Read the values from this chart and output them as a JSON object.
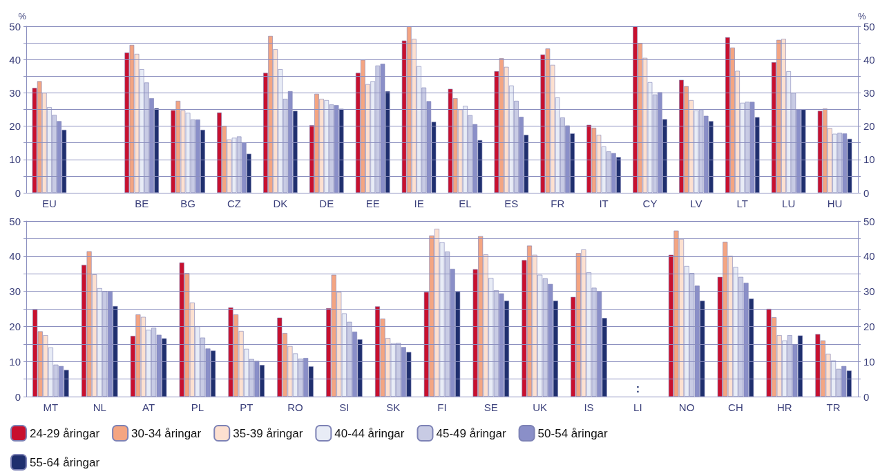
{
  "chart_data": [
    {
      "type": "bar",
      "categories": [
        "EU",
        null,
        "BE",
        "BG",
        "CZ",
        "DK",
        "DE",
        "EE",
        "IE",
        "EL",
        "ES",
        "FR",
        "IT",
        "CY",
        "LV",
        "LT",
        "LU",
        "HU"
      ],
      "series": [
        {
          "color": "#c8102e",
          "values": [
            31.5,
            null,
            42.1,
            24.8,
            24.1,
            36,
            20.3,
            36,
            45.7,
            31.2,
            36.5,
            41.5,
            20.4,
            50,
            33.9,
            46.7,
            39.2,
            24.6
          ]
        },
        {
          "color": "#f4a582",
          "values": [
            33.5,
            null,
            44.4,
            27.6,
            20.1,
            47.1,
            29.7,
            39.9,
            50,
            28.4,
            40.4,
            43.3,
            19.5,
            44.9,
            32,
            43.6,
            45.9,
            25.3
          ]
        },
        {
          "color": "#fde0d0",
          "values": [
            30,
            null,
            41.7,
            24.8,
            16,
            43.1,
            28.2,
            32.6,
            46.2,
            25,
            37.8,
            38.4,
            17.4,
            40.5,
            27.8,
            36.6,
            46.2,
            19.4
          ]
        },
        {
          "color": "#e8ecf6",
          "values": [
            25.7,
            null,
            37.1,
            24,
            16.5,
            37.1,
            27.8,
            33.5,
            38,
            26.1,
            32.2,
            28.6,
            13.9,
            33.2,
            24.7,
            27,
            36.5,
            17.7
          ]
        },
        {
          "color": "#c8cbe4",
          "values": [
            23.4,
            null,
            33.1,
            22,
            16.9,
            28.2,
            26.5,
            38.2,
            31.6,
            23.3,
            27.6,
            22.6,
            12.4,
            29.5,
            25,
            27.3,
            30,
            18
          ]
        },
        {
          "color": "#8a8fc8",
          "values": [
            21.5,
            null,
            28.4,
            22,
            15.1,
            30.5,
            26.3,
            38.7,
            27.5,
            20.6,
            22.8,
            20.2,
            11.9,
            30.2,
            23.1,
            27.3,
            25,
            17.8
          ]
        },
        {
          "color": "#1f2f6e",
          "values": [
            18.9,
            null,
            25.4,
            18.9,
            11.7,
            24.6,
            25.2,
            30.5,
            21.3,
            15.8,
            17.4,
            17.8,
            10.7,
            22.1,
            21.5,
            22.7,
            25,
            16.2
          ]
        }
      ],
      "ylabel": "%",
      "y2label": "%",
      "ylim": [
        0,
        50
      ],
      "yticks": [
        0,
        {
          "value": 5,
          "label": null
        },
        10,
        {
          "value": 15,
          "label": null
        },
        20,
        {
          "value": 25,
          "label": null
        },
        30,
        {
          "value": 35,
          "label": null
        },
        40,
        {
          "value": 45,
          "label": null
        },
        50
      ],
      "y2lim": [
        0,
        50
      ],
      "y2ticks": [
        0,
        {
          "value": 5,
          "label": null
        },
        10,
        {
          "value": 15,
          "label": null
        },
        20,
        {
          "value": 25,
          "label": null
        },
        30,
        {
          "value": 35,
          "label": null
        },
        40,
        {
          "value": 45,
          "label": null
        },
        50
      ],
      "grid": "y",
      "legend": false
    },
    {
      "type": "bar",
      "categories": [
        "MT",
        "NL",
        "AT",
        "PL",
        "PT",
        "RO",
        "SI",
        "SK",
        "FI",
        "SE",
        "UK",
        "IS",
        "LI",
        "NO",
        "CH",
        "HR",
        "TR"
      ],
      "series": [
        {
          "name": "24-29 åringar",
          "color": "#c8102e",
          "values": [
            24.8,
            37.5,
            17.3,
            38.2,
            25.4,
            22.5,
            25.2,
            25.7,
            29.8,
            36.3,
            38.9,
            28.4,
            null,
            40.4,
            34.1,
            25,
            17.8
          ]
        },
        {
          "name": "30-34 åringar",
          "color": "#f4a582",
          "values": [
            18.6,
            41.4,
            23.4,
            35.2,
            23.4,
            18.1,
            34.7,
            22.2,
            45.9,
            45.7,
            43,
            40.9,
            null,
            47.3,
            44.1,
            22.6,
            16
          ]
        },
        {
          "name": "35-39 åringar",
          "color": "#fde0d0",
          "values": [
            17.5,
            34.8,
            22.7,
            26.8,
            18.7,
            14.4,
            29.8,
            16.7,
            47.8,
            40.5,
            40.4,
            41.9,
            null,
            44.9,
            40.1,
            17.5,
            12.2
          ]
        },
        {
          "name": "40-44 åringar",
          "color": "#e8ecf6",
          "values": [
            14,
            30.9,
            19,
            20,
            13.6,
            12.3,
            23.7,
            15.2,
            44,
            33.8,
            34.7,
            35.4,
            null,
            37.2,
            36.9,
            16,
            10.3
          ]
        },
        {
          "name": "45-49 åringar",
          "color": "#c8cbe4",
          "values": [
            9.1,
            29.9,
            19.6,
            16.8,
            10.7,
            10.8,
            21.3,
            15.3,
            41.3,
            30.3,
            33.7,
            31,
            null,
            35.2,
            34.1,
            17.5,
            7.9
          ]
        },
        {
          "name": "50-54 åringar",
          "color": "#8a8fc8",
          "values": [
            8.7,
            29.9,
            17.6,
            13.7,
            10.2,
            11,
            18.5,
            14.1,
            36.4,
            29.4,
            32.1,
            29.9,
            null,
            31.6,
            32.4,
            14.9,
            8.7
          ]
        },
        {
          "name": "55-64 åringar",
          "color": "#1f2f6e",
          "values": [
            7.6,
            25.8,
            16.6,
            13.1,
            9,
            8.6,
            16.3,
            12.7,
            29.9,
            27.3,
            27.3,
            22.4,
            null,
            27.3,
            27.9,
            17.4,
            7.4
          ]
        }
      ],
      "annotations": [
        ":"
      ],
      "ylim": [
        0,
        50
      ],
      "yticks": [
        0,
        {
          "value": 5,
          "label": null
        },
        10,
        {
          "value": 15,
          "label": null
        },
        20,
        {
          "value": 25,
          "label": null
        },
        30,
        {
          "value": 35,
          "label": null
        },
        40,
        {
          "value": 45,
          "label": null
        },
        50
      ],
      "y2lim": [
        0,
        50
      ],
      "y2ticks": [
        0,
        {
          "value": 5,
          "label": null
        },
        10,
        {
          "value": 15,
          "label": null
        },
        20,
        {
          "value": 25,
          "label": null
        },
        30,
        {
          "value": 35,
          "label": null
        },
        40,
        {
          "value": 45,
          "label": null
        },
        50
      ],
      "grid": "y",
      "legend": "bottom"
    }
  ]
}
